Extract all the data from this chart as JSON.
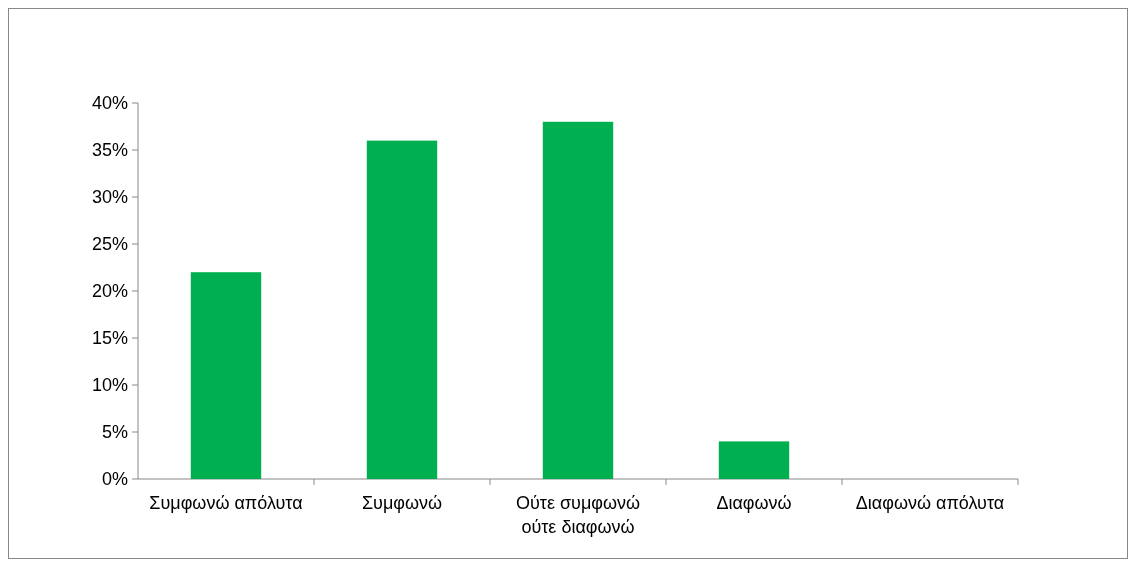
{
  "chart_data": {
    "type": "bar",
    "categories": [
      "Συμφωνώ απόλυτα",
      "Συμφωνώ",
      "Ούτε συμφωνώ ούτε διαφωνώ",
      "Διαφωνώ",
      "Διαφωνώ απόλυτα"
    ],
    "values": [
      22,
      36,
      38,
      4,
      0
    ],
    "color": "#00b050",
    "ylim": [
      0,
      40
    ],
    "yticks": [
      {
        "value": 0,
        "label": "0%"
      },
      {
        "value": 5,
        "label": "5%"
      },
      {
        "value": 10,
        "label": "10%"
      },
      {
        "value": 15,
        "label": "15%"
      },
      {
        "value": 20,
        "label": "20%"
      },
      {
        "value": 25,
        "label": "25%"
      },
      {
        "value": 30,
        "label": "30%"
      },
      {
        "value": 35,
        "label": "35%"
      },
      {
        "value": 40,
        "label": "40%"
      }
    ],
    "grid": false
  }
}
